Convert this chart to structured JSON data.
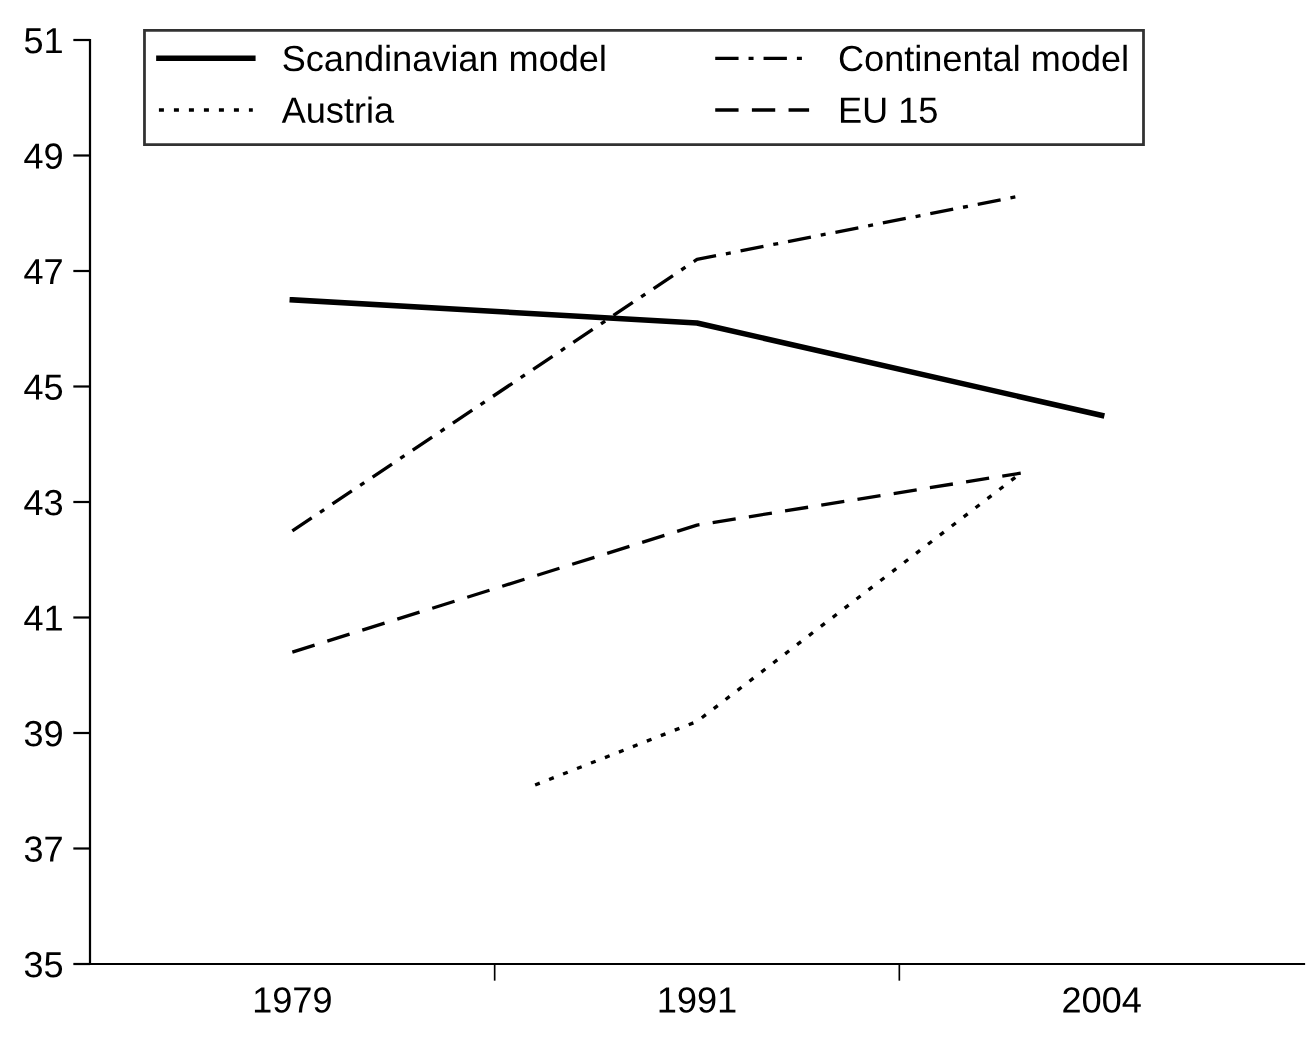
{
  "chart_data": {
    "type": "line",
    "categories": [
      "1979",
      null,
      null,
      null,
      null,
      "1991",
      null,
      null,
      null,
      null,
      "2004"
    ],
    "series": [
      {
        "name": "Scandinavian model",
        "color": "#000000",
        "line_style": "solid",
        "values": [
          46.5,
          null,
          null,
          null,
          null,
          46.1,
          null,
          null,
          null,
          null,
          44.5
        ]
      },
      {
        "name": "Austria",
        "color": "#000000",
        "line_style": "dotted",
        "values": [
          null,
          null,
          null,
          38.1,
          null,
          39.2,
          null,
          null,
          null,
          43.5,
          null
        ]
      },
      {
        "name": "Continental model",
        "color": "#000000",
        "line_style": "dashdot",
        "values": [
          42.5,
          null,
          null,
          null,
          null,
          47.2,
          null,
          null,
          null,
          48.3,
          null
        ]
      },
      {
        "name": "EU 15",
        "color": "#000000",
        "line_style": "dashed",
        "values": [
          40.4,
          null,
          null,
          null,
          null,
          42.6,
          null,
          null,
          null,
          43.5,
          null
        ]
      }
    ],
    "ylim": [
      35,
      51
    ],
    "yticks": [
      35,
      37,
      39,
      41,
      43,
      45,
      47,
      49,
      51
    ],
    "grid": false,
    "legend": "top left",
    "marker": "none"
  }
}
